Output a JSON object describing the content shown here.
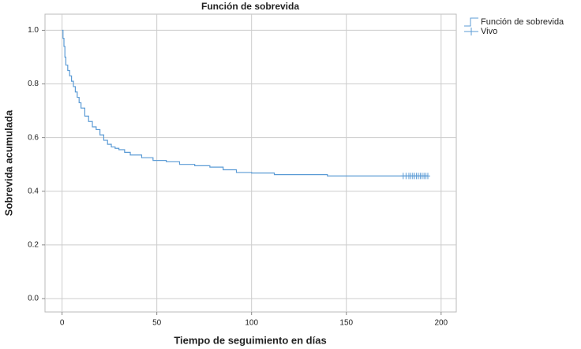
{
  "chart_data": {
    "type": "step",
    "title": "Función de sobrevida",
    "x_label": "Tiempo de seguimiento en días",
    "y_label": "Sobrevida acumulada",
    "xlim": [
      -9,
      208
    ],
    "ylim": [
      -0.05,
      1.06
    ],
    "xticks": [
      0,
      50,
      100,
      150,
      200
    ],
    "yticks": [
      {
        "value": 0.0,
        "label": "0.0"
      },
      0.2,
      0.4,
      0.6,
      0.8,
      {
        "value": 1.0,
        "label": "1.0"
      }
    ],
    "grid": true,
    "legend": "outside-top-right",
    "series": [
      {
        "name": "Función de sobrevida",
        "color": "#5b9bd5",
        "style": "step",
        "x": [
          0,
          0.5,
          1,
          1.5,
          2,
          3,
          4,
          5,
          6,
          7,
          8,
          9,
          10,
          12,
          14,
          16,
          18,
          20,
          22,
          24,
          26,
          28,
          30,
          33,
          36,
          42,
          48,
          55,
          62,
          70,
          78,
          85,
          92,
          100,
          112,
          140,
          193
        ],
        "values": [
          1.0,
          0.97,
          0.94,
          0.9,
          0.87,
          0.85,
          0.83,
          0.81,
          0.79,
          0.77,
          0.75,
          0.73,
          0.71,
          0.68,
          0.66,
          0.64,
          0.63,
          0.61,
          0.59,
          0.575,
          0.565,
          0.56,
          0.555,
          0.545,
          0.535,
          0.525,
          0.515,
          0.51,
          0.5,
          0.495,
          0.49,
          0.48,
          0.47,
          0.468,
          0.462,
          0.457,
          0.457
        ]
      },
      {
        "name": "Vivo",
        "color": "#5b9bd5",
        "style": "censored",
        "x": [
          180,
          181.5,
          183,
          184,
          185,
          186,
          187,
          188,
          189,
          190,
          191,
          192,
          193
        ],
        "values": [
          0.457,
          0.457,
          0.457,
          0.457,
          0.457,
          0.457,
          0.457,
          0.457,
          0.457,
          0.457,
          0.457,
          0.457,
          0.457
        ]
      }
    ]
  }
}
